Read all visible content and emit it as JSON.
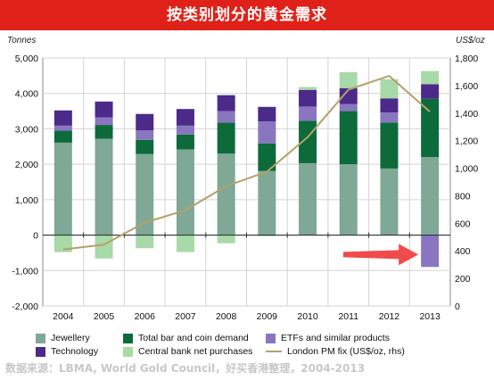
{
  "title": "按类别划分的黄金需求",
  "source": "数据来源：LBMA, World Gold Council，好买香港整理，2004-2013",
  "colors": {
    "header_bg": "#e0211a",
    "jewellery": "#7fa896",
    "technology": "#4b2a8a",
    "bar_coin": "#0d6a3a",
    "etf": "#8a76c0",
    "central_bank": "#a8d9a8",
    "price_line": "#b5a06a",
    "arrow": "#f04b4b"
  },
  "chart_data": {
    "type": "bar",
    "stacked": true,
    "categories": [
      "2004",
      "2005",
      "2006",
      "2007",
      "2008",
      "2009",
      "2010",
      "2011",
      "2012",
      "2013"
    ],
    "y_left_label": "Tonnes",
    "y_right_label": "US$/oz",
    "ylim_left": [
      -2000,
      5000
    ],
    "ylim_right": [
      0,
      1800
    ],
    "yticks_left": [
      "-2,000",
      "-1,000",
      "0",
      "1,000",
      "2,000",
      "3,000",
      "4,000",
      "5,000"
    ],
    "yticks_right": [
      "0",
      "200",
      "400",
      "600",
      "800",
      "1,000",
      "1,200",
      "1,400",
      "1,600",
      "1,800"
    ],
    "grid": true,
    "series": [
      {
        "name": "Jewellery",
        "key": "jewellery",
        "values": [
          2610,
          2720,
          2290,
          2420,
          2300,
          1810,
          2030,
          2000,
          1880,
          2200
        ]
      },
      {
        "name": "Total bar and coin demand",
        "key": "bar_coin",
        "values": [
          340,
          390,
          400,
          420,
          880,
          780,
          1200,
          1500,
          1300,
          1650
        ]
      },
      {
        "name": "ETFs and similar products",
        "key": "etf",
        "values": [
          140,
          210,
          270,
          250,
          320,
          620,
          400,
          200,
          280,
          -900
        ]
      },
      {
        "name": "Technology",
        "key": "technology",
        "values": [
          430,
          450,
          460,
          470,
          450,
          410,
          470,
          450,
          400,
          410
        ]
      },
      {
        "name": "Central bank net purchases",
        "key": "central_bank",
        "values": [
          -480,
          -660,
          -370,
          -480,
          -230,
          -30,
          80,
          450,
          540,
          370
        ]
      }
    ],
    "line": {
      "name": "London PM fix (US$/oz, rhs)",
      "axis": "right",
      "values": [
        410,
        445,
        605,
        695,
        870,
        975,
        1225,
        1570,
        1670,
        1410
      ]
    },
    "legend": [
      {
        "label": "Jewellery",
        "key": "jewellery",
        "kind": "box"
      },
      {
        "label": "Total bar and coin demand",
        "key": "bar_coin",
        "kind": "box"
      },
      {
        "label": "ETFs and similar products",
        "key": "etf",
        "kind": "box"
      },
      {
        "label": "Technology",
        "key": "technology",
        "kind": "box"
      },
      {
        "label": "Central bank net purchases",
        "key": "central_bank",
        "kind": "box"
      },
      {
        "label": "London PM fix (US$/oz, rhs)",
        "key": "price_line",
        "kind": "line"
      }
    ],
    "legend_position": "bottom"
  }
}
